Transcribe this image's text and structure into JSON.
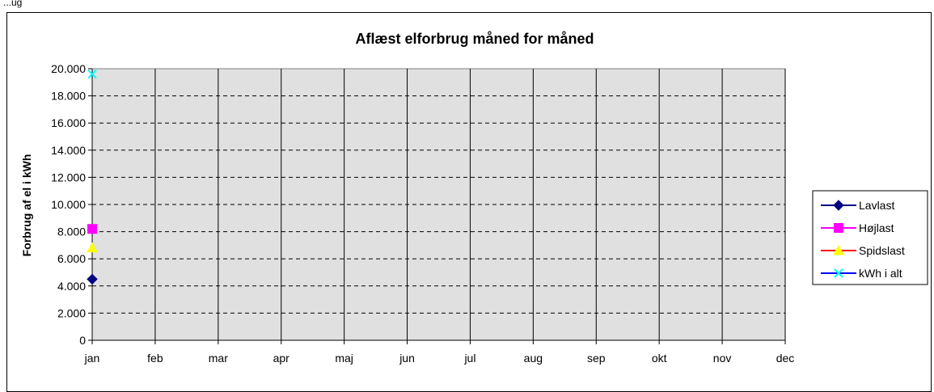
{
  "page": {
    "top_label": "...ug"
  },
  "chart_data": {
    "type": "line",
    "title": "Aflæst elforbrug måned for måned",
    "xlabel": "",
    "ylabel": "Forbrug af el i kWh",
    "categories": [
      "jan",
      "feb",
      "mar",
      "apr",
      "maj",
      "jun",
      "jul",
      "aug",
      "sep",
      "okt",
      "nov",
      "dec"
    ],
    "ylim": [
      0,
      20000
    ],
    "yticks": [
      0,
      2000,
      4000,
      6000,
      8000,
      10000,
      12000,
      14000,
      16000,
      18000,
      20000
    ],
    "ytick_labels": [
      "0",
      "2.000",
      "4.000",
      "6.000",
      "8.000",
      "10.000",
      "12.000",
      "14.000",
      "16.000",
      "18.000",
      "20.000"
    ],
    "grid": true,
    "legend_position": "right",
    "plot_background": "#e0e0e0",
    "series": [
      {
        "name": "Lavlast",
        "color": "#000080",
        "marker": "diamond",
        "values": [
          4500,
          null,
          null,
          null,
          null,
          null,
          null,
          null,
          null,
          null,
          null,
          null
        ]
      },
      {
        "name": "Højlast",
        "color": "#ff00ff",
        "marker": "square",
        "values": [
          8200,
          null,
          null,
          null,
          null,
          null,
          null,
          null,
          null,
          null,
          null,
          null
        ]
      },
      {
        "name": "Spidslast",
        "color": "#ffff00",
        "line_color": "#ff0000",
        "marker": "triangle",
        "values": [
          6800,
          null,
          null,
          null,
          null,
          null,
          null,
          null,
          null,
          null,
          null,
          null
        ]
      },
      {
        "name": "kWh i alt",
        "color": "#00ffff",
        "line_color": "#0000ff",
        "marker": "x",
        "values": [
          19600,
          null,
          null,
          null,
          null,
          null,
          null,
          null,
          null,
          null,
          null,
          null
        ]
      }
    ]
  }
}
